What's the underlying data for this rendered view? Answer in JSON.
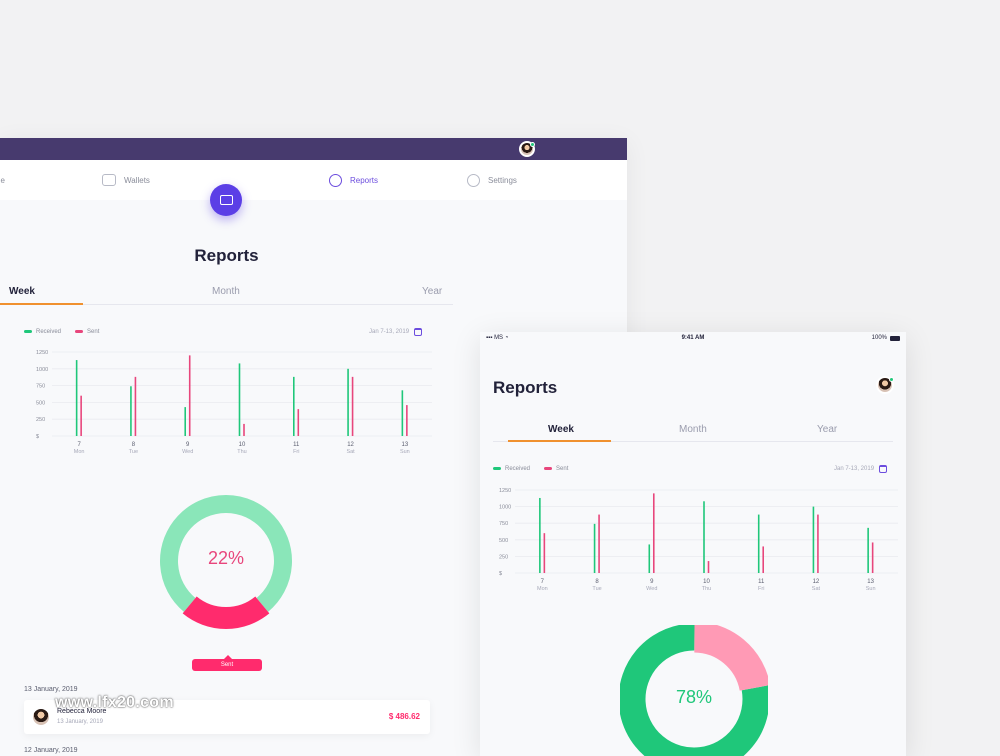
{
  "big": {
    "nav": {
      "home_partial": "ne",
      "wallets": "Wallets",
      "reports": "Reports",
      "settings": "Settings"
    },
    "title": "Reports",
    "tabs": {
      "week": "Week",
      "month": "Month",
      "year": "Year"
    },
    "legend": {
      "received": "Received",
      "sent": "Sent"
    },
    "date_range": "Jan 7-13, 2019",
    "donut_label": "22%",
    "sent_tag": "Sent",
    "list": [
      {
        "date": "13 January, 2019",
        "name": "Rebecca Moore",
        "sub_date": "13 January, 2019",
        "amount": "$ 486.62"
      },
      {
        "date": "12 January, 2019"
      }
    ]
  },
  "phone": {
    "status": {
      "carrier": "MS",
      "time": "9:41 AM",
      "battery": "100%"
    },
    "title": "Reports",
    "tabs": {
      "week": "Week",
      "month": "Month",
      "year": "Year"
    },
    "legend": {
      "received": "Received",
      "sent": "Sent"
    },
    "date_range": "Jan 7-13, 2019",
    "donut_label": "78%"
  },
  "watermark": "www.lfx20.com",
  "colors": {
    "received": "#1fc77a",
    "sent": "#e8467c",
    "accent": "#6c4dde",
    "tab_underline": "#f0912f",
    "nav_bar": "#473a6e"
  },
  "chart_data": [
    {
      "type": "bar",
      "categories": [
        "7",
        "8",
        "9",
        "10",
        "11",
        "12",
        "13"
      ],
      "day_labels": [
        "Mon",
        "Tue",
        "Wed",
        "Thu",
        "Fri",
        "Sat",
        "Sun"
      ],
      "yticks": [
        "$",
        "250",
        "500",
        "750",
        "1000",
        "1250"
      ],
      "ylim": [
        0,
        1250
      ],
      "series": [
        {
          "name": "Received",
          "values": [
            1130,
            740,
            430,
            1080,
            880,
            1000,
            680
          ]
        },
        {
          "name": "Sent",
          "values": [
            600,
            880,
            1200,
            180,
            400,
            880,
            460
          ]
        }
      ]
    },
    {
      "type": "pie",
      "labels": [
        "Sent",
        "Received"
      ],
      "values": [
        22,
        78
      ]
    },
    {
      "type": "bar",
      "categories": [
        "7",
        "8",
        "9",
        "10",
        "11",
        "12",
        "13"
      ],
      "day_labels": [
        "Mon",
        "Tue",
        "Wed",
        "Thu",
        "Fri",
        "Sat",
        "Sun"
      ],
      "yticks": [
        "$",
        "250",
        "500",
        "750",
        "1000",
        "1250"
      ],
      "ylim": [
        0,
        1250
      ],
      "series": [
        {
          "name": "Received",
          "values": [
            1130,
            740,
            430,
            1080,
            880,
            1000,
            680
          ]
        },
        {
          "name": "Sent",
          "values": [
            600,
            880,
            1200,
            180,
            400,
            880,
            460
          ]
        }
      ]
    },
    {
      "type": "pie",
      "labels": [
        "Sent",
        "Received"
      ],
      "values": [
        22,
        78
      ]
    }
  ]
}
